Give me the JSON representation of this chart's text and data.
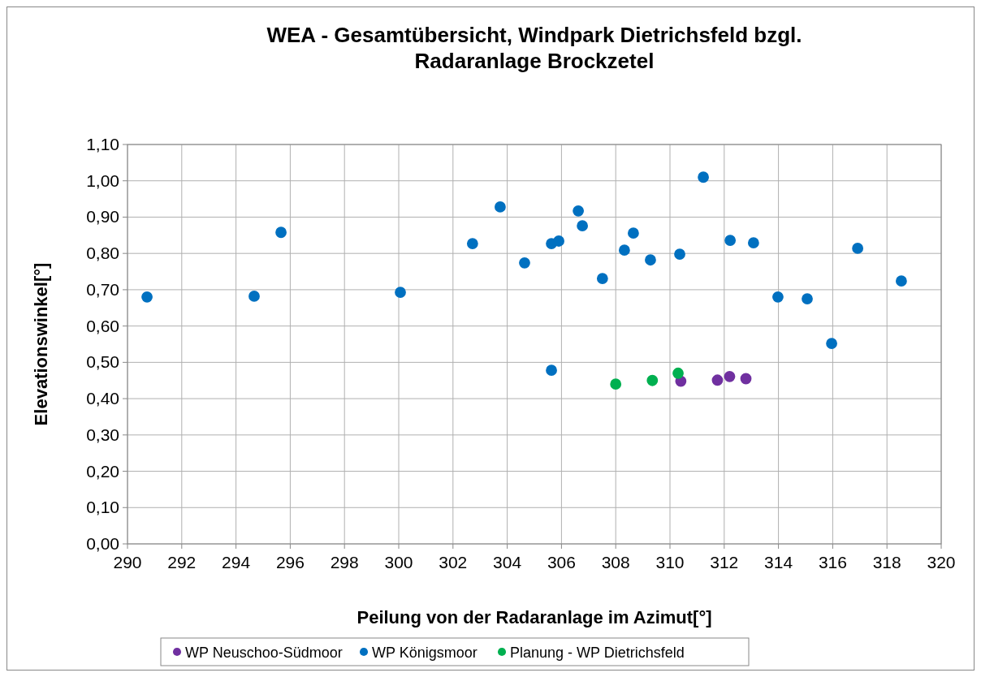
{
  "chart_data": {
    "type": "scatter",
    "title": "WEA - Gesamtübersicht, Windpark Dietrichsfeld  bzgl.\nRadaranlage Brockzetel",
    "xlabel": "Peilung von der Radaranlage im Azimut[°]",
    "ylabel": "Elevationswinkel[°]",
    "xlim": [
      290,
      320
    ],
    "xticks": [
      290,
      292,
      294,
      296,
      298,
      300,
      302,
      304,
      306,
      308,
      310,
      312,
      314,
      316,
      318,
      320
    ],
    "ylim": [
      0,
      1.1
    ],
    "yticks": [
      {
        "value": 0,
        "label": "0,00"
      },
      {
        "value": 0.1,
        "label": "0,10"
      },
      {
        "value": 0.2,
        "label": "0,20"
      },
      {
        "value": 0.3,
        "label": "0,30"
      },
      {
        "value": 0.4,
        "label": "0,40"
      },
      {
        "value": 0.5,
        "label": "0,50"
      },
      {
        "value": 0.6,
        "label": "0,60"
      },
      {
        "value": 0.7,
        "label": "0,70"
      },
      {
        "value": 0.8,
        "label": "0,80"
      },
      {
        "value": 0.9,
        "label": "0,90"
      },
      {
        "value": 1.0,
        "label": "1,00"
      },
      {
        "value": 1.1,
        "label": "1,10"
      }
    ],
    "grid": true,
    "legend": "bottom",
    "marker": "circle",
    "series": [
      {
        "name": "WP Neuschoo-Südmoor",
        "color": "#7030a0",
        "x": [
          310.4,
          311.75,
          312.2,
          312.8
        ],
        "values": [
          0.448,
          0.451,
          0.461,
          0.455
        ]
      },
      {
        "name": "WP Königsmoor",
        "color": "#0070c0",
        "x": [
          290.72,
          294.67,
          295.66,
          300.06,
          302.72,
          303.74,
          304.64,
          305.63,
          305.9,
          306.62,
          306.77,
          305.63,
          307.51,
          308.32,
          308.65,
          309.28,
          310.36,
          311.23,
          312.22,
          313.08,
          313.98,
          315.06,
          315.96,
          316.92,
          318.53
        ],
        "values": [
          0.68,
          0.682,
          0.858,
          0.693,
          0.827,
          0.928,
          0.774,
          0.827,
          0.834,
          0.917,
          0.876,
          0.478,
          0.731,
          0.809,
          0.856,
          0.782,
          0.798,
          1.01,
          0.836,
          0.829,
          0.68,
          0.675,
          0.552,
          0.814,
          0.724
        ]
      },
      {
        "name": "Planung - WP Dietrichsfeld",
        "color": "#00b050",
        "x": [
          308.0,
          309.35,
          310.3
        ],
        "values": [
          0.44,
          0.45,
          0.47
        ]
      }
    ]
  }
}
